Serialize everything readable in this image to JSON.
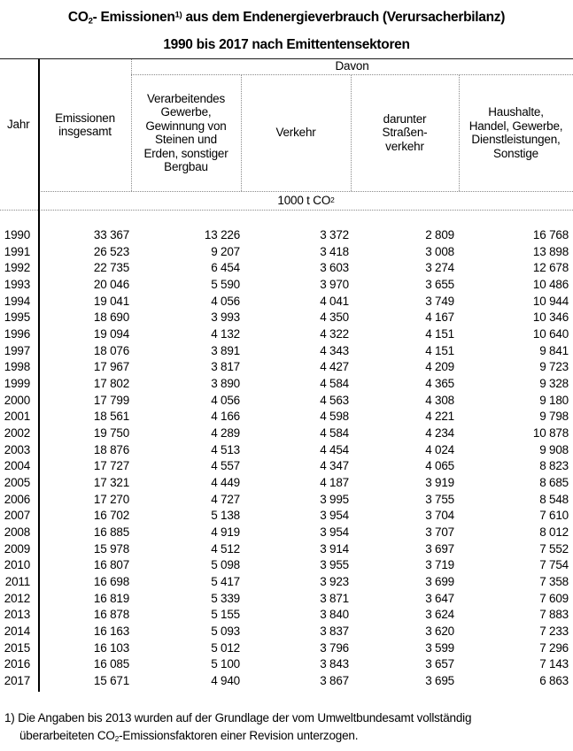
{
  "title": {
    "line1_co": "CO",
    "line1_sub": "2",
    "line1_mid": "- Emissionen",
    "line1_sup": "1)",
    "line1_rest": " aus dem Endenergieverbrauch (Verursacherbilanz)",
    "line2": "1990 bis 2017 nach Emittentensektoren"
  },
  "table": {
    "davon_label": "Davon",
    "headers": {
      "jahr": "Jahr",
      "insgesamt": "Emissionen\ninsgesamt",
      "verarbeitendes": "Verarbeitendes\nGewerbe,\nGewinnung von\nSteinen und\nErden, sonstiger\nBergbau",
      "verkehr": "Verkehr",
      "strassenverkehr": "darunter\nStraßen-\nverkehr",
      "haushalte": "Haushalte,\nHandel, Gewerbe,\nDienstleistungen,\nSonstige"
    },
    "unit_pre": "1000 t CO",
    "unit_sub": "2",
    "rows": [
      [
        "1990",
        "33 367",
        "13 226",
        "3 372",
        "2 809",
        "16 768"
      ],
      [
        "1991",
        "26 523",
        "9 207",
        "3 418",
        "3 008",
        "13 898"
      ],
      [
        "1992",
        "22 735",
        "6 454",
        "3 603",
        "3 274",
        "12 678"
      ],
      [
        "1993",
        "20 046",
        "5 590",
        "3 970",
        "3 655",
        "10 486"
      ],
      [
        "1994",
        "19 041",
        "4 056",
        "4 041",
        "3 749",
        "10 944"
      ],
      [
        "1995",
        "18 690",
        "3 993",
        "4 350",
        "4 167",
        "10 346"
      ],
      [
        "1996",
        "19 094",
        "4 132",
        "4 322",
        "4 151",
        "10 640"
      ],
      [
        "1997",
        "18 076",
        "3 891",
        "4 343",
        "4 151",
        "9 841"
      ],
      [
        "1998",
        "17 967",
        "3 817",
        "4 427",
        "4 209",
        "9 723"
      ],
      [
        "1999",
        "17 802",
        "3 890",
        "4 584",
        "4 365",
        "9 328"
      ],
      [
        "2000",
        "17 799",
        "4 056",
        "4 563",
        "4 308",
        "9 180"
      ],
      [
        "2001",
        "18 561",
        "4 166",
        "4 598",
        "4 221",
        "9 798"
      ],
      [
        "2002",
        "19 750",
        "4 289",
        "4 584",
        "4 234",
        "10 878"
      ],
      [
        "2003",
        "18 876",
        "4 513",
        "4 454",
        "4 024",
        "9 908"
      ],
      [
        "2004",
        "17 727",
        "4 557",
        "4 347",
        "4 065",
        "8 823"
      ],
      [
        "2005",
        "17 321",
        "4 449",
        "4 187",
        "3 919",
        "8 685"
      ],
      [
        "2006",
        "17 270",
        "4 727",
        "3 995",
        "3 755",
        "8 548"
      ],
      [
        "2007",
        "16 702",
        "5 138",
        "3 954",
        "3 704",
        "7 610"
      ],
      [
        "2008",
        "16 885",
        "4 919",
        "3 954",
        "3 707",
        "8 012"
      ],
      [
        "2009",
        "15 978",
        "4 512",
        "3 914",
        "3 697",
        "7 552"
      ],
      [
        "2010",
        "16 807",
        "5 098",
        "3 955",
        "3 719",
        "7 754"
      ],
      [
        "2011",
        "16 698",
        "5 417",
        "3 923",
        "3 699",
        "7 358"
      ],
      [
        "2012",
        "16 819",
        "5 339",
        "3 871",
        "3 647",
        "7 609"
      ],
      [
        "2013",
        "16 878",
        "5 155",
        "3 840",
        "3 624",
        "7 883"
      ],
      [
        "2014",
        "16 163",
        "5 093",
        "3 837",
        "3 620",
        "7 233"
      ],
      [
        "2015",
        "16 103",
        "5 012",
        "3 796",
        "3 599",
        "7 296"
      ],
      [
        "2016",
        "16 085",
        "5 100",
        "3 843",
        "3 657",
        "7 143"
      ],
      [
        "2017",
        "15 671",
        "4 940",
        "3 867",
        "3 695",
        "6 863"
      ]
    ]
  },
  "footnote": {
    "line1": "1) Die Angaben bis 2013 wurden auf der Grundlage der vom Umweltbundesamt vollständig",
    "line2_pre": "überarbeiteten CO",
    "line2_sub": "2",
    "line2_rest": "-Emissionsfaktoren einer Revision unterzogen."
  },
  "colors": {
    "text": "#000000",
    "rule_dark": "#1a1a1a",
    "rule_grey": "#8a8a8a"
  }
}
